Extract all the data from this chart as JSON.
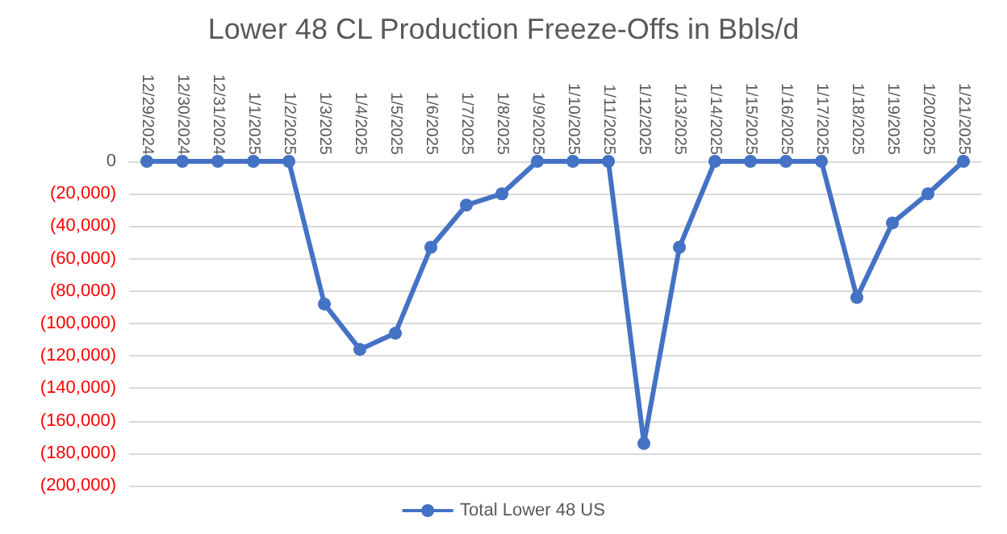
{
  "chart_data": {
    "type": "line",
    "title": "Lower 48 CL Production Freeze-Offs in Bbls/d",
    "categories": [
      "12/29/2024",
      "12/30/2024",
      "12/31/2024",
      "1/1/2025",
      "1/2/2025",
      "1/3/2025",
      "1/4/2025",
      "1/5/2025",
      "1/6/2025",
      "1/7/2025",
      "1/8/2025",
      "1/9/2025",
      "1/10/2025",
      "1/11/2025",
      "1/12/2025",
      "1/13/2025",
      "1/14/2025",
      "1/15/2025",
      "1/16/2025",
      "1/17/2025",
      "1/18/2025",
      "1/19/2025",
      "1/20/2025",
      "1/21/2025"
    ],
    "series": [
      {
        "name": "Total Lower 48 US",
        "color": "#4472c4",
        "values": [
          0,
          0,
          0,
          0,
          0,
          -88000,
          -116000,
          -106000,
          -53000,
          -27000,
          -20000,
          0,
          0,
          0,
          -174000,
          -53000,
          0,
          0,
          0,
          0,
          -84000,
          -38000,
          -20000,
          0
        ]
      }
    ],
    "ylim": [
      -200000,
      0
    ],
    "yticks": [
      {
        "value": -200000,
        "label": "(200,000)"
      },
      {
        "value": -180000,
        "label": "(180,000)"
      },
      {
        "value": -160000,
        "label": "(160,000)"
      },
      {
        "value": -140000,
        "label": "(140,000)"
      },
      {
        "value": -120000,
        "label": "(120,000)"
      },
      {
        "value": -100000,
        "label": "(100,000)"
      },
      {
        "value": -80000,
        "label": "(80,000)"
      },
      {
        "value": -60000,
        "label": "(60,000)"
      },
      {
        "value": -40000,
        "label": "(40,000)"
      },
      {
        "value": -20000,
        "label": "(20,000)"
      },
      0
    ],
    "grid": "y",
    "legend": "bottom",
    "marker": "circle",
    "line_style": "solid"
  }
}
